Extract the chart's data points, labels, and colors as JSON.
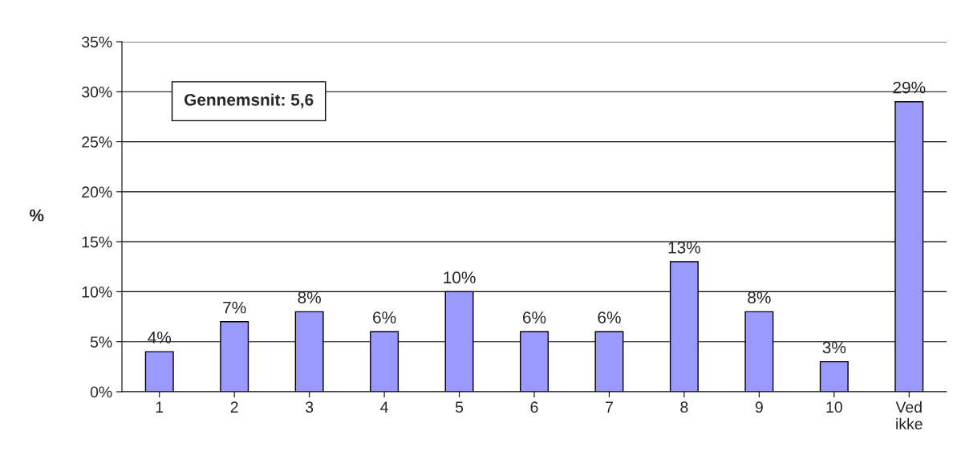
{
  "chart_data": {
    "type": "bar",
    "ylabel": "%",
    "categories": [
      "1",
      "2",
      "3",
      "4",
      "5",
      "6",
      "7",
      "8",
      "9",
      "10",
      "Ved ikke"
    ],
    "values": [
      4,
      7,
      8,
      6,
      10,
      6,
      6,
      13,
      8,
      3,
      29
    ],
    "value_labels": [
      "4%",
      "7%",
      "8%",
      "6%",
      "10%",
      "6%",
      "6%",
      "13%",
      "8%",
      "3%",
      "29%"
    ],
    "color": "#9999ff",
    "ylim": [
      0,
      35
    ],
    "yticks": [
      {
        "value": 0,
        "label": "0%"
      },
      {
        "value": 5,
        "label": "5%"
      },
      {
        "value": 10,
        "label": "10%"
      },
      {
        "value": 15,
        "label": "15%"
      },
      {
        "value": 20,
        "label": "20%"
      },
      {
        "value": 25,
        "label": "25%"
      },
      {
        "value": 30,
        "label": "30%"
      },
      {
        "value": 35,
        "label": "35%"
      }
    ],
    "grid": "y",
    "annotations": [
      "Gennemsnit: 5,6"
    ]
  }
}
